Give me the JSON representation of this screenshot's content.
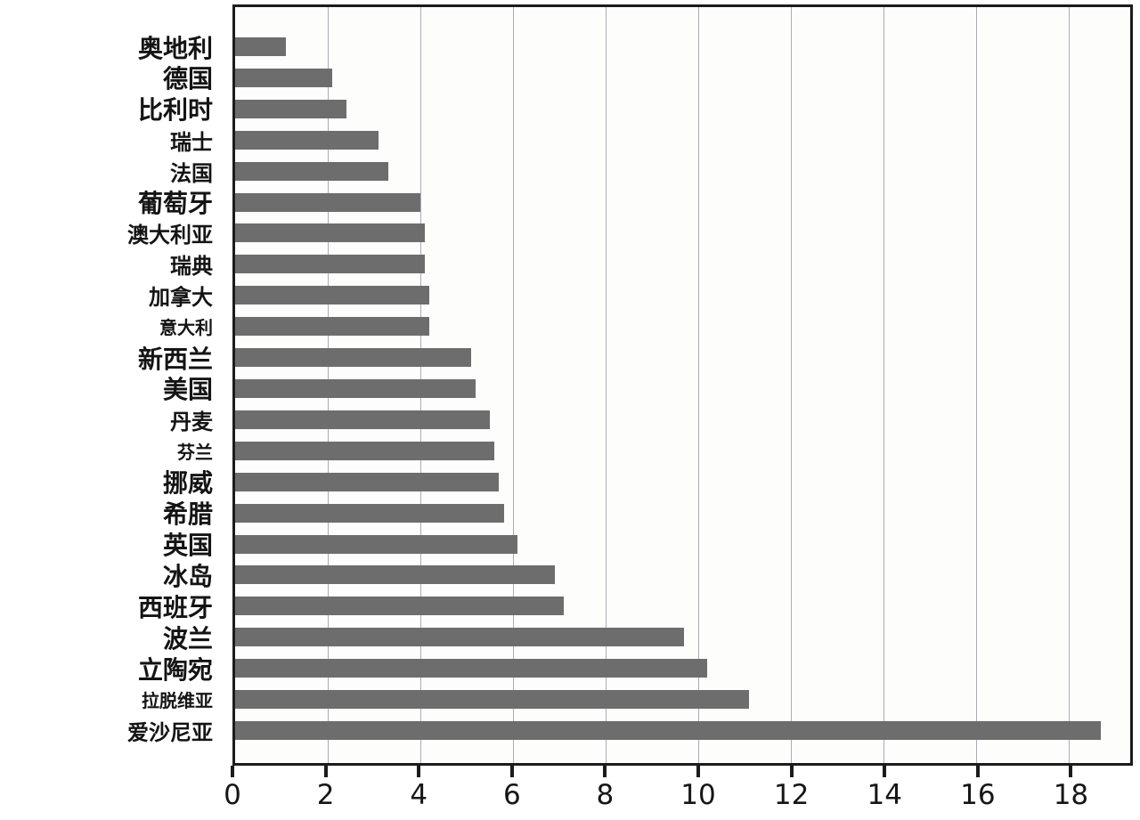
{
  "chart_data": {
    "type": "bar",
    "orientation": "horizontal",
    "title": "",
    "xlabel": "",
    "ylabel": "",
    "categories": [
      "奥地利",
      "德国",
      "比利时",
      "瑞士",
      "法国",
      "葡萄牙",
      "澳大利亚",
      "瑞典",
      "加拿大",
      "意大利",
      "新西兰",
      "美国",
      "丹麦",
      "芬兰",
      "挪威",
      "希腊",
      "英国",
      "冰岛",
      "西班牙",
      "波兰",
      "立陶宛",
      "拉脱维亚",
      "爱沙尼亚"
    ],
    "values": [
      1.1,
      2.1,
      2.4,
      3.1,
      3.3,
      4.0,
      4.1,
      4.1,
      4.2,
      4.2,
      5.1,
      5.2,
      5.5,
      5.6,
      5.7,
      5.8,
      6.1,
      6.9,
      7.1,
      9.7,
      10.2,
      11.1,
      18.7
    ],
    "label_sizes": [
      "lg",
      "lg",
      "lg",
      "md",
      "md",
      "lg",
      "md",
      "md",
      "md",
      "sm",
      "lg",
      "lg",
      "md",
      "sm",
      "lg",
      "lg",
      "lg",
      "lg",
      "lg",
      "lg",
      "lg",
      "sm",
      "md"
    ],
    "xticks": [
      0,
      2,
      4,
      6,
      8,
      10,
      12,
      14,
      16,
      18
    ],
    "xlim": [
      0,
      19.33
    ],
    "grid": "vertical-on",
    "legend": "none",
    "bar_color": "#6d6d6d",
    "axis_color": "#1c1c1c",
    "grid_color": "#a9adb3",
    "background": "#fdfdfc"
  }
}
